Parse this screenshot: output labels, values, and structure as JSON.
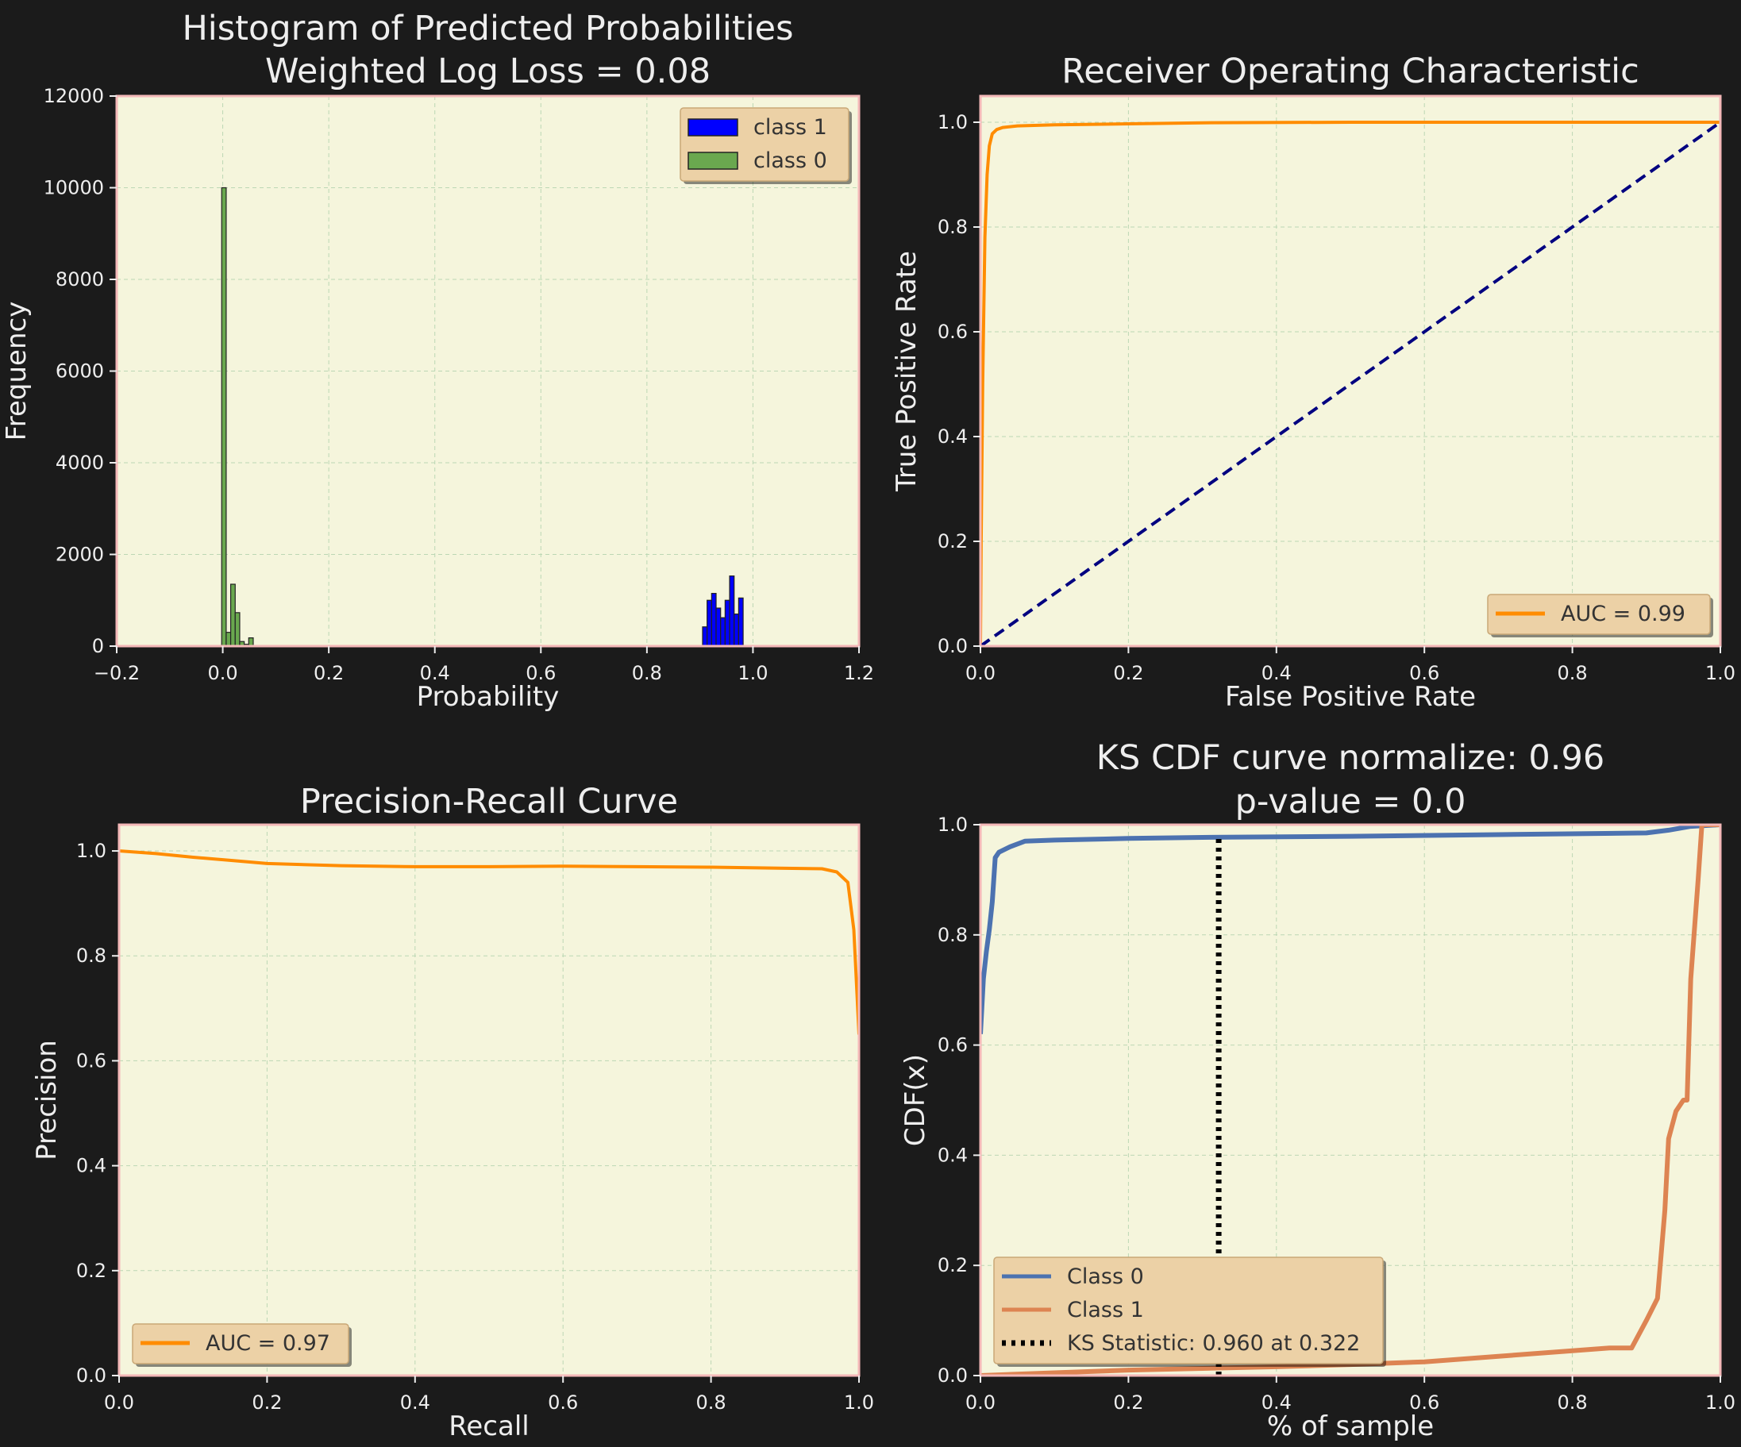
{
  "chart_data": [
    {
      "id": "hist",
      "type": "bar",
      "title": "Histogram of Predicted Probabilities\nWeighted Log Loss = 0.08",
      "xlabel": "Probability",
      "ylabel": "Frequency",
      "xlim": [
        -0.2,
        1.2
      ],
      "ylim": [
        0,
        12000
      ],
      "xticks": [
        -0.2,
        0.0,
        0.2,
        0.4,
        0.6,
        0.8,
        1.0,
        1.2
      ],
      "xtick_labels": [
        "−0.2",
        "0.0",
        "0.2",
        "0.4",
        "0.6",
        "0.8",
        "1.0",
        "1.2"
      ],
      "yticks": [
        0,
        2000,
        4000,
        6000,
        8000,
        10000,
        12000
      ],
      "ytick_labels": [
        "0",
        "2000",
        "4000",
        "6000",
        "8000",
        "10000",
        "12000"
      ],
      "grid": true,
      "legend_position": "top-right",
      "series": [
        {
          "name": "class 1",
          "color": "#0000ff",
          "bin_width": 0.0085,
          "bins": [
            {
              "x": 0.905,
              "y": 420
            },
            {
              "x": 0.9135,
              "y": 1000
            },
            {
              "x": 0.922,
              "y": 1150
            },
            {
              "x": 0.9305,
              "y": 830
            },
            {
              "x": 0.939,
              "y": 620
            },
            {
              "x": 0.9475,
              "y": 1000
            },
            {
              "x": 0.956,
              "y": 1530
            },
            {
              "x": 0.9645,
              "y": 700
            },
            {
              "x": 0.973,
              "y": 1050
            }
          ]
        },
        {
          "name": "class 0",
          "color": "#6aa84f",
          "bin_width": 0.0085,
          "bins": [
            {
              "x": -0.002,
              "y": 10000
            },
            {
              "x": 0.0065,
              "y": 300
            },
            {
              "x": 0.015,
              "y": 1350
            },
            {
              "x": 0.0235,
              "y": 730
            },
            {
              "x": 0.032,
              "y": 100
            },
            {
              "x": 0.0405,
              "y": 40
            },
            {
              "x": 0.049,
              "y": 180
            }
          ]
        }
      ]
    },
    {
      "id": "roc",
      "type": "line",
      "title": "Receiver Operating Characteristic",
      "xlabel": "False Positive Rate",
      "ylabel": "True Positive Rate",
      "xlim": [
        0.0,
        1.0
      ],
      "ylim": [
        0.0,
        1.05
      ],
      "xticks": [
        0.0,
        0.2,
        0.4,
        0.6,
        0.8,
        1.0
      ],
      "xtick_labels": [
        "0.0",
        "0.2",
        "0.4",
        "0.6",
        "0.8",
        "1.0"
      ],
      "yticks": [
        0.0,
        0.2,
        0.4,
        0.6,
        0.8,
        1.0
      ],
      "ytick_labels": [
        "0.0",
        "0.2",
        "0.4",
        "0.6",
        "0.8",
        "1.0"
      ],
      "grid": true,
      "legend_position": "lower-right",
      "series": [
        {
          "name": "AUC = 0.99",
          "color": "#ff8c00",
          "style": "solid",
          "x": [
            0.0,
            0.001,
            0.003,
            0.006,
            0.009,
            0.012,
            0.016,
            0.022,
            0.03,
            0.05,
            0.1,
            0.2,
            0.3,
            0.5,
            0.7,
            1.0
          ],
          "y": [
            0.0,
            0.2,
            0.5,
            0.78,
            0.9,
            0.955,
            0.978,
            0.986,
            0.99,
            0.993,
            0.995,
            0.997,
            0.999,
            1.0,
            1.0,
            1.0
          ]
        },
        {
          "name": "",
          "color": "#000080",
          "style": "dashed",
          "x": [
            0.0,
            1.0
          ],
          "y": [
            0.0,
            1.0
          ]
        }
      ]
    },
    {
      "id": "pr",
      "type": "line",
      "title": "Precision-Recall Curve",
      "xlabel": "Recall",
      "ylabel": "Precision",
      "xlim": [
        0.0,
        1.0
      ],
      "ylim": [
        0.0,
        1.05
      ],
      "xticks": [
        0.0,
        0.2,
        0.4,
        0.6,
        0.8,
        1.0
      ],
      "xtick_labels": [
        "0.0",
        "0.2",
        "0.4",
        "0.6",
        "0.8",
        "1.0"
      ],
      "yticks": [
        0.0,
        0.2,
        0.4,
        0.6,
        0.8,
        1.0
      ],
      "ytick_labels": [
        "0.0",
        "0.2",
        "0.4",
        "0.6",
        "0.8",
        "1.0"
      ],
      "grid": true,
      "legend_position": "lower-left",
      "series": [
        {
          "name": "AUC = 0.97",
          "color": "#ff8c00",
          "style": "solid",
          "x": [
            0.0,
            0.05,
            0.1,
            0.15,
            0.2,
            0.3,
            0.4,
            0.5,
            0.6,
            0.7,
            0.8,
            0.9,
            0.95,
            0.97,
            0.985,
            0.993,
            1.0
          ],
          "y": [
            1.0,
            0.995,
            0.988,
            0.982,
            0.976,
            0.972,
            0.97,
            0.97,
            0.971,
            0.97,
            0.969,
            0.967,
            0.966,
            0.96,
            0.94,
            0.85,
            0.65
          ]
        }
      ]
    },
    {
      "id": "ks",
      "type": "line",
      "title": "KS CDF curve normalize: 0.96\np-value = 0.0",
      "xlabel": "% of sample",
      "ylabel": "CDF(x)",
      "xlim": [
        0.0,
        1.0
      ],
      "ylim": [
        0.0,
        1.0
      ],
      "xticks": [
        0.0,
        0.2,
        0.4,
        0.6,
        0.8,
        1.0
      ],
      "xtick_labels": [
        "0.0",
        "0.2",
        "0.4",
        "0.6",
        "0.8",
        "1.0"
      ],
      "yticks": [
        0.0,
        0.2,
        0.4,
        0.6,
        0.8,
        1.0
      ],
      "ytick_labels": [
        "0.0",
        "0.2",
        "0.4",
        "0.6",
        "0.8",
        "1.0"
      ],
      "grid": true,
      "legend_position": "lower-left",
      "series": [
        {
          "name": "Class 0",
          "color": "#4c72b0",
          "style": "solid",
          "x": [
            0.0,
            0.004,
            0.008,
            0.012,
            0.016,
            0.02,
            0.025,
            0.04,
            0.06,
            0.1,
            0.2,
            0.3,
            0.5,
            0.7,
            0.9,
            0.93,
            0.96,
            1.0
          ],
          "y": [
            0.62,
            0.72,
            0.77,
            0.81,
            0.86,
            0.94,
            0.95,
            0.96,
            0.97,
            0.972,
            0.975,
            0.977,
            0.979,
            0.982,
            0.985,
            0.99,
            0.997,
            1.0
          ]
        },
        {
          "name": "Class 1",
          "color": "#dd8452",
          "style": "solid",
          "x": [
            0.0,
            0.1,
            0.2,
            0.3,
            0.4,
            0.5,
            0.6,
            0.7,
            0.8,
            0.85,
            0.88,
            0.9,
            0.915,
            0.925,
            0.93,
            0.94,
            0.95,
            0.955,
            0.96,
            0.97,
            0.975,
            1.0
          ],
          "y": [
            0.0,
            0.005,
            0.01,
            0.013,
            0.016,
            0.02,
            0.025,
            0.035,
            0.045,
            0.05,
            0.05,
            0.1,
            0.14,
            0.3,
            0.43,
            0.48,
            0.5,
            0.5,
            0.72,
            0.9,
            1.0,
            1.0
          ]
        },
        {
          "name": "KS Statistic: 0.960 at 0.322",
          "color": "#000000",
          "style": "dotted",
          "x": [
            0.322,
            0.322
          ],
          "y": [
            0.0,
            0.98
          ]
        }
      ]
    }
  ]
}
